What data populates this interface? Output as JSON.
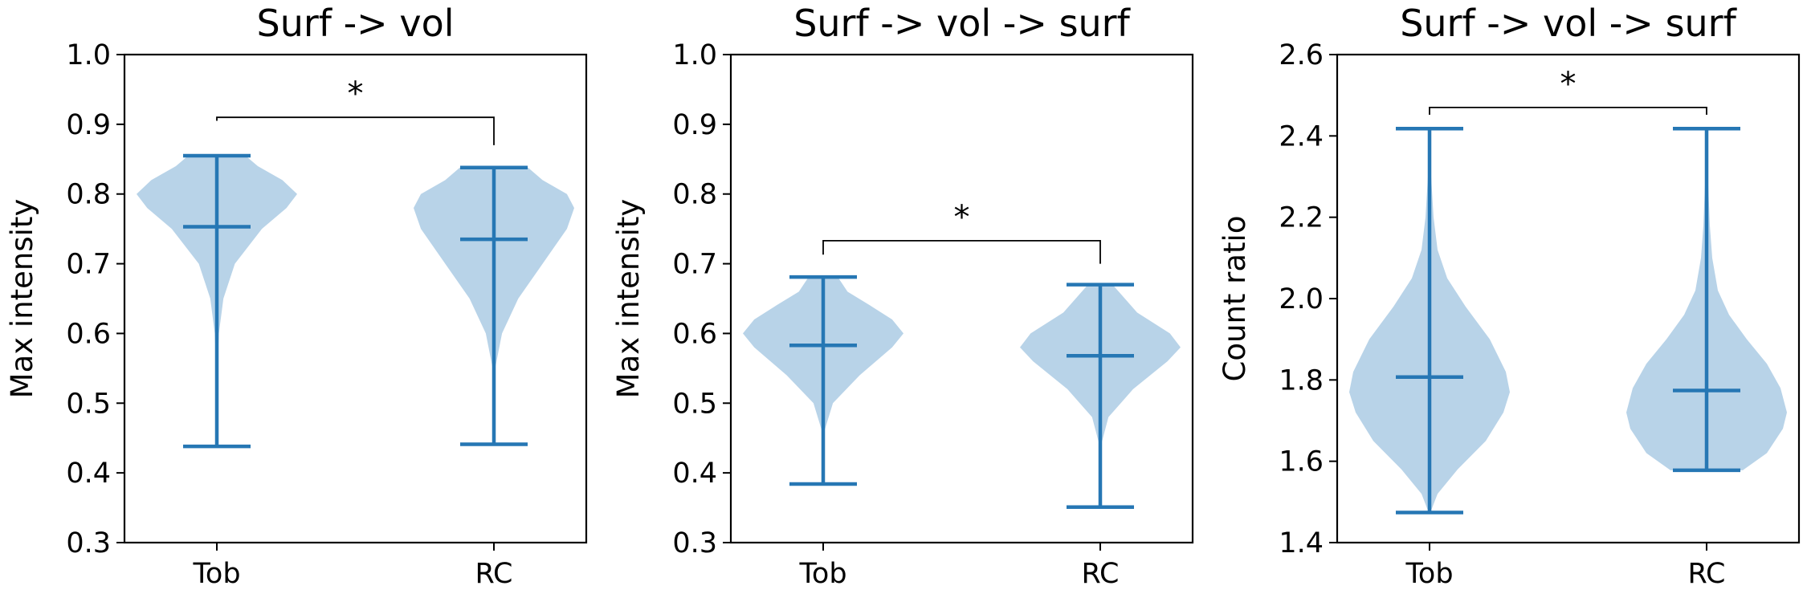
{
  "chart_data": [
    {
      "type": "violin",
      "title": "Surf -> vol",
      "xlabel": "",
      "ylabel": "Max intensity",
      "categories": [
        "Tob",
        "RC"
      ],
      "ylim": [
        0.3,
        1.0
      ],
      "yticks": [
        "0.3",
        "0.4",
        "0.5",
        "0.6",
        "0.7",
        "0.8",
        "0.9",
        "1.0"
      ],
      "violins": [
        {
          "category": "Tob",
          "min": 0.438,
          "mean": 0.753,
          "max": 0.855,
          "density": [
            [
              0.438,
              0.003
            ],
            [
              0.5,
              0.004
            ],
            [
              0.55,
              0.008
            ],
            [
              0.6,
              0.025
            ],
            [
              0.65,
              0.08
            ],
            [
              0.7,
              0.22
            ],
            [
              0.75,
              0.55
            ],
            [
              0.78,
              0.85
            ],
            [
              0.8,
              0.98
            ],
            [
              0.82,
              0.8
            ],
            [
              0.84,
              0.5
            ],
            [
              0.855,
              0.35
            ]
          ]
        },
        {
          "category": "RC",
          "min": 0.441,
          "mean": 0.735,
          "max": 0.838,
          "density": [
            [
              0.441,
              0.003
            ],
            [
              0.5,
              0.004
            ],
            [
              0.55,
              0.015
            ],
            [
              0.6,
              0.1
            ],
            [
              0.65,
              0.3
            ],
            [
              0.7,
              0.6
            ],
            [
              0.75,
              0.9
            ],
            [
              0.78,
              0.99
            ],
            [
              0.8,
              0.9
            ],
            [
              0.82,
              0.6
            ],
            [
              0.838,
              0.42
            ]
          ]
        }
      ],
      "significance": {
        "pair": [
          "Tob",
          "RC"
        ],
        "label": "*",
        "bar_y": 0.91,
        "left_end": 0.905,
        "right_end": 0.87
      }
    },
    {
      "type": "violin",
      "title": "Surf -> vol -> surf",
      "xlabel": "",
      "ylabel": "Max intensity",
      "categories": [
        "Tob",
        "RC"
      ],
      "ylim": [
        0.3,
        1.0
      ],
      "yticks": [
        "0.3",
        "0.4",
        "0.5",
        "0.6",
        "0.7",
        "0.8",
        "0.9",
        "1.0"
      ],
      "violins": [
        {
          "category": "Tob",
          "min": 0.384,
          "mean": 0.583,
          "max": 0.681,
          "density": [
            [
              0.384,
              0.003
            ],
            [
              0.42,
              0.006
            ],
            [
              0.46,
              0.015
            ],
            [
              0.5,
              0.12
            ],
            [
              0.54,
              0.45
            ],
            [
              0.58,
              0.85
            ],
            [
              0.6,
              0.99
            ],
            [
              0.62,
              0.85
            ],
            [
              0.64,
              0.58
            ],
            [
              0.66,
              0.3
            ],
            [
              0.681,
              0.18
            ]
          ]
        },
        {
          "category": "RC",
          "min": 0.351,
          "mean": 0.568,
          "max": 0.67,
          "density": [
            [
              0.351,
              0.003
            ],
            [
              0.4,
              0.004
            ],
            [
              0.44,
              0.01
            ],
            [
              0.48,
              0.1
            ],
            [
              0.52,
              0.4
            ],
            [
              0.56,
              0.82
            ],
            [
              0.58,
              0.98
            ],
            [
              0.6,
              0.85
            ],
            [
              0.63,
              0.45
            ],
            [
              0.67,
              0.15
            ]
          ]
        }
      ],
      "significance": {
        "pair": [
          "Tob",
          "RC"
        ],
        "label": "*",
        "bar_y": 0.733,
        "left_end": 0.713,
        "right_end": 0.7
      }
    },
    {
      "type": "violin",
      "title": "Surf -> vol -> surf",
      "xlabel": "",
      "ylabel": "Count ratio",
      "categories": [
        "Tob",
        "RC"
      ],
      "ylim": [
        1.4,
        2.6
      ],
      "yticks": [
        "1.4",
        "1.6",
        "1.8",
        "2.0",
        "2.2",
        "2.4",
        "2.6"
      ],
      "violins": [
        {
          "category": "Tob",
          "min": 1.474,
          "mean": 1.807,
          "max": 2.418,
          "density": [
            [
              1.474,
              0.01
            ],
            [
              1.52,
              0.1
            ],
            [
              1.58,
              0.35
            ],
            [
              1.65,
              0.7
            ],
            [
              1.72,
              0.92
            ],
            [
              1.77,
              1.0
            ],
            [
              1.82,
              0.95
            ],
            [
              1.9,
              0.75
            ],
            [
              1.98,
              0.45
            ],
            [
              2.05,
              0.22
            ],
            [
              2.12,
              0.1
            ],
            [
              2.2,
              0.05
            ],
            [
              2.3,
              0.02
            ],
            [
              2.418,
              0.005
            ]
          ]
        },
        {
          "category": "RC",
          "min": 1.578,
          "mean": 1.774,
          "max": 2.418,
          "density": [
            [
              1.578,
              0.45
            ],
            [
              1.62,
              0.75
            ],
            [
              1.68,
              0.95
            ],
            [
              1.72,
              1.0
            ],
            [
              1.78,
              0.92
            ],
            [
              1.84,
              0.75
            ],
            [
              1.9,
              0.5
            ],
            [
              1.96,
              0.28
            ],
            [
              2.02,
              0.14
            ],
            [
              2.1,
              0.07
            ],
            [
              2.18,
              0.04
            ],
            [
              2.28,
              0.02
            ],
            [
              2.418,
              0.005
            ]
          ]
        }
      ],
      "significance": {
        "pair": [
          "Tob",
          "RC"
        ],
        "label": "*",
        "bar_y": 2.47,
        "left_end": 2.452,
        "right_end": 2.452
      }
    }
  ],
  "colors": {
    "violin_fill": "#b8d3e8",
    "line": "#2677b4",
    "axis": "#000000"
  }
}
